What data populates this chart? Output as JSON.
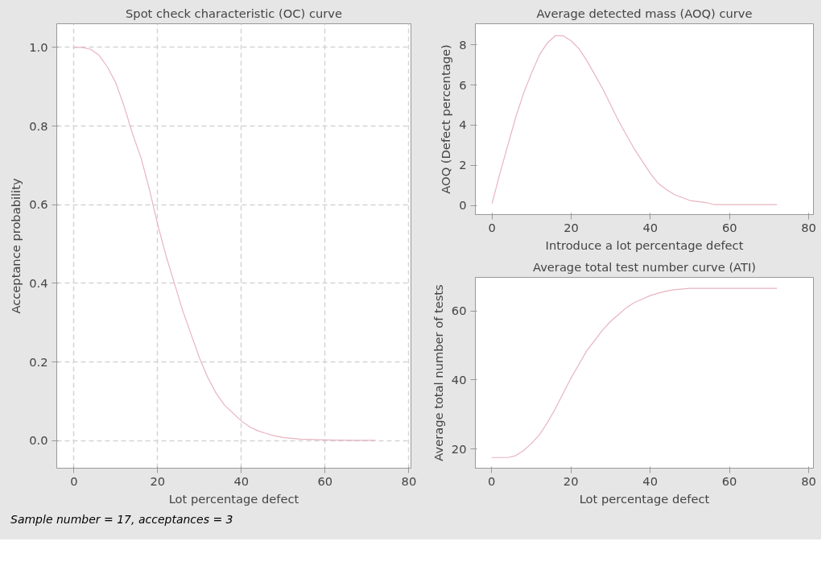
{
  "chart_data": [
    {
      "type": "line",
      "title": "Spot check characteristic (OC) curve",
      "xlabel": "Lot percentage defect",
      "ylabel": "Acceptance probability",
      "x": [
        0,
        2,
        4,
        6,
        8,
        10,
        12,
        14,
        16,
        18,
        20,
        22,
        24,
        26,
        28,
        30,
        32,
        34,
        36,
        38,
        40,
        42,
        44,
        46,
        48,
        50,
        54,
        60,
        66,
        72
      ],
      "series": [
        {
          "color": "#e8b4c0",
          "values": [
            1.0,
            1.0,
            0.995,
            0.98,
            0.95,
            0.91,
            0.85,
            0.78,
            0.72,
            0.64,
            0.55,
            0.47,
            0.4,
            0.33,
            0.27,
            0.21,
            0.16,
            0.12,
            0.09,
            0.07,
            0.05,
            0.035,
            0.025,
            0.018,
            0.012,
            0.008,
            0.004,
            0.002,
            0.001,
            0.001
          ]
        }
      ],
      "xlim": [
        -4.1,
        80.5
      ],
      "xticks": [
        0,
        20,
        40,
        60,
        80
      ],
      "ylim": [
        -0.07,
        1.06
      ],
      "yticks": [
        {
          "value": 0,
          "label": "0.0"
        },
        0.2,
        0.4,
        0.6,
        0.8,
        {
          "value": 1,
          "label": "1.0"
        }
      ],
      "grid": true,
      "line_style": "solid",
      "marker": "none",
      "annotations": [
        "Sample number = 17, acceptances = 3"
      ]
    },
    {
      "type": "line",
      "title": "Average detected mass (AOQ) curve",
      "xlabel": "Introduce a lot percentage defect",
      "ylabel": "AOQ (Defect percentage)",
      "x": [
        0,
        2,
        4,
        6,
        8,
        10,
        12,
        14,
        16,
        18,
        20,
        22,
        24,
        26,
        28,
        30,
        32,
        34,
        36,
        38,
        40,
        42,
        44,
        46,
        48,
        50,
        54,
        56,
        60,
        72
      ],
      "series": [
        {
          "color": "#e8b4c0",
          "values": [
            0.1,
            1.6,
            3.0,
            4.4,
            5.6,
            6.6,
            7.5,
            8.1,
            8.45,
            8.45,
            8.2,
            7.8,
            7.2,
            6.5,
            5.8,
            5.0,
            4.2,
            3.5,
            2.8,
            2.2,
            1.6,
            1.1,
            0.8,
            0.55,
            0.4,
            0.25,
            0.15,
            0.05,
            0.05,
            0.05
          ]
        }
      ],
      "xlim": [
        -4.2,
        81.2
      ],
      "xticks": [
        0,
        20,
        40,
        60,
        80
      ],
      "ylim": [
        -0.45,
        9.05
      ],
      "yticks": [
        0,
        2,
        4,
        6,
        8
      ],
      "grid": false,
      "line_style": "solid",
      "marker": "none"
    },
    {
      "type": "line",
      "title": "Average total test number curve (ATI)",
      "xlabel": "Lot percentage defect",
      "ylabel": "Average total number of tests",
      "x": [
        0,
        4,
        6,
        8,
        10,
        12,
        14,
        16,
        18,
        20,
        22,
        24,
        26,
        28,
        30,
        32,
        34,
        36,
        38,
        40,
        42,
        44,
        46,
        50,
        72
      ],
      "series": [
        {
          "color": "#e8b4c0",
          "values": [
            17.5,
            17.5,
            18,
            19.5,
            21.5,
            24,
            27.5,
            31.5,
            36,
            40.5,
            44.5,
            48.5,
            51.5,
            54.5,
            57,
            59,
            61,
            62.5,
            63.5,
            64.5,
            65.2,
            65.8,
            66.2,
            66.6,
            66.6
          ]
        }
      ],
      "xlim": [
        -4.1,
        81.2
      ],
      "xticks": [
        0,
        20,
        40,
        60,
        80
      ],
      "ylim": [
        14.4,
        69.8
      ],
      "yticks": [
        20,
        40,
        60
      ],
      "grid": false,
      "line_style": "solid",
      "marker": "none"
    }
  ]
}
